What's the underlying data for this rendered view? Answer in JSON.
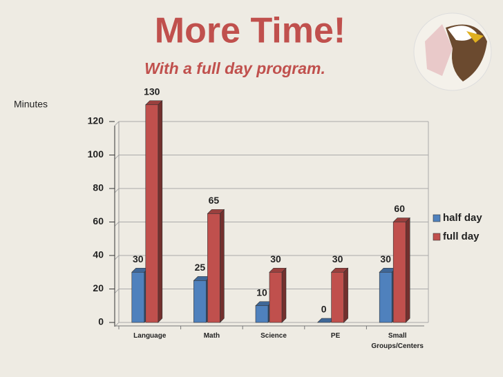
{
  "chart_data": {
    "type": "bar",
    "title": "More Time!",
    "subtitle": "With a full day program.",
    "y_label": "Minutes",
    "categories": [
      "Language",
      "Math",
      "Science",
      "PE",
      "Small Groups/Centers"
    ],
    "series": [
      {
        "name": "half day",
        "color": "#4f81bd",
        "values": [
          30,
          25,
          10,
          0,
          30
        ]
      },
      {
        "name": "full day",
        "color": "#c0504d",
        "values": [
          130,
          65,
          30,
          30,
          60
        ]
      }
    ],
    "ylim": [
      0,
      120
    ],
    "yticks": [
      0,
      20,
      40,
      60,
      80,
      100,
      120
    ],
    "grid": true,
    "legend": "right"
  }
}
